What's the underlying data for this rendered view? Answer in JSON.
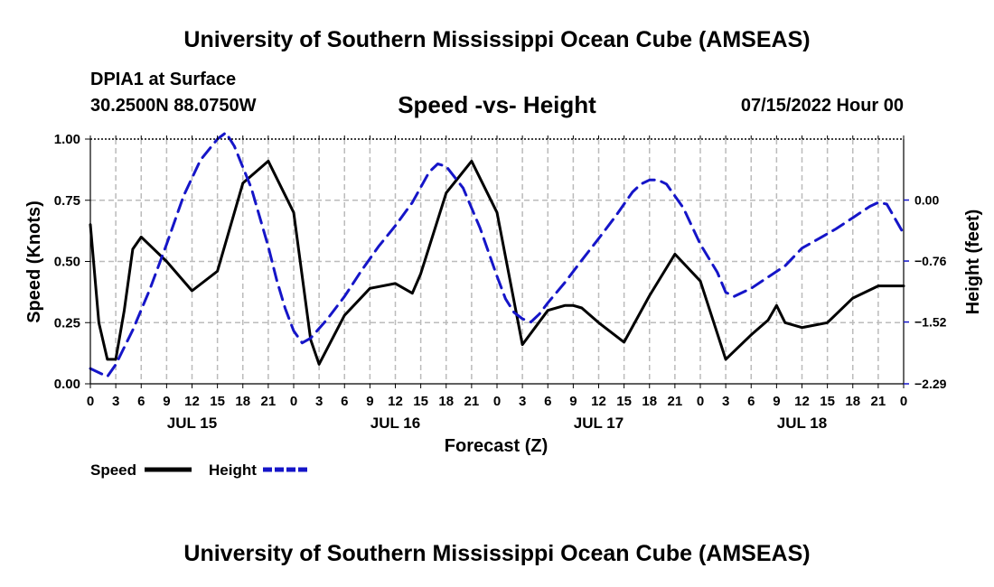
{
  "header": {
    "title": "University of Southern Mississippi Ocean Cube (AMSEAS)",
    "station": "DPIA1 at Surface",
    "coords": "30.2500N  88.0750W",
    "chart_title": "Speed -vs- Height",
    "datetime": "07/15/2022 Hour 00"
  },
  "footer": {
    "title": "University of Southern Mississippi Ocean Cube (AMSEAS)"
  },
  "colors": {
    "speed": "#000000",
    "height": "#1515c8",
    "grid": "#bbbbbb"
  },
  "chart_data": {
    "type": "line",
    "xlabel": "Forecast (Z)",
    "ylabel": "Speed (Knots)",
    "y2label": "Height (feet)",
    "xlim": [
      0,
      96
    ],
    "ylim": [
      0,
      1
    ],
    "y2lim": [
      -2.29,
      0.76
    ],
    "x_ticks": [
      0,
      3,
      6,
      9,
      12,
      15,
      18,
      21,
      24,
      27,
      30,
      33,
      36,
      39,
      42,
      45,
      48,
      51,
      54,
      57,
      60,
      63,
      66,
      69,
      72,
      75,
      78,
      81,
      84,
      87,
      90,
      93,
      96
    ],
    "x_tick_labels": [
      "0",
      "3",
      "6",
      "9",
      "12",
      "15",
      "18",
      "21",
      "0",
      "3",
      "6",
      "9",
      "12",
      "15",
      "18",
      "21",
      "0",
      "3",
      "6",
      "9",
      "12",
      "15",
      "18",
      "21",
      "0",
      "3",
      "6",
      "9",
      "12",
      "15",
      "18",
      "21",
      "0"
    ],
    "y_ticks": [
      0,
      0.25,
      0.5,
      0.75,
      1
    ],
    "y_tick_labels": [
      "0.00",
      "0.25",
      "0.50",
      "0.75",
      "1.00"
    ],
    "y2_ticks": [
      -2.29,
      -1.52,
      -0.76,
      0
    ],
    "y2_tick_labels": [
      "−2.29",
      "−1.52",
      "−0.76",
      "0.00"
    ],
    "day_labels": [
      {
        "x": 12,
        "label": "JUL 15"
      },
      {
        "x": 36,
        "label": "JUL 16"
      },
      {
        "x": 60,
        "label": "JUL 17"
      },
      {
        "x": 84,
        "label": "JUL 18"
      }
    ],
    "legend": [
      "Speed",
      "Height"
    ],
    "series": [
      {
        "name": "Speed",
        "axis": "left",
        "style": "solid",
        "x": [
          0,
          1,
          2,
          3,
          4,
          5,
          6,
          9,
          12,
          15,
          18,
          21,
          24,
          26,
          27,
          30,
          33,
          36,
          38,
          39,
          42,
          45,
          48,
          51,
          54,
          56,
          57,
          58,
          60,
          63,
          66,
          69,
          72,
          75,
          78,
          80,
          81,
          82,
          84,
          87,
          90,
          93,
          96
        ],
        "values": [
          0.65,
          0.25,
          0.1,
          0.1,
          0.3,
          0.55,
          0.6,
          0.5,
          0.38,
          0.46,
          0.82,
          0.91,
          0.7,
          0.18,
          0.08,
          0.28,
          0.39,
          0.41,
          0.37,
          0.45,
          0.78,
          0.91,
          0.7,
          0.16,
          0.3,
          0.32,
          0.32,
          0.31,
          0.25,
          0.17,
          0.36,
          0.53,
          0.42,
          0.1,
          0.2,
          0.26,
          0.32,
          0.25,
          0.23,
          0.25,
          0.35,
          0.4,
          0.4
        ]
      },
      {
        "name": "Height",
        "axis": "right",
        "style": "dashed",
        "x": [
          0,
          2,
          3,
          5,
          7,
          9,
          11,
          13,
          15,
          16,
          17,
          19,
          21,
          22,
          23,
          24,
          25,
          26,
          28,
          30,
          32,
          34,
          36,
          38,
          40,
          41,
          42,
          44,
          46,
          48,
          49,
          50,
          51,
          52,
          53,
          54,
          56,
          58,
          60,
          62,
          64,
          65,
          66,
          67,
          68,
          70,
          72,
          74,
          75,
          76,
          78,
          80,
          82,
          84,
          86,
          88,
          90,
          92,
          93,
          94,
          96
        ],
        "values": [
          -2.1,
          -2.2,
          -2.05,
          -1.62,
          -1.12,
          -0.55,
          0.05,
          0.5,
          0.76,
          0.84,
          0.67,
          0.15,
          -0.58,
          -1.0,
          -1.35,
          -1.63,
          -1.78,
          -1.72,
          -1.48,
          -1.2,
          -0.88,
          -0.58,
          -0.32,
          -0.03,
          0.35,
          0.45,
          0.42,
          0.15,
          -0.35,
          -0.95,
          -1.23,
          -1.4,
          -1.48,
          -1.52,
          -1.42,
          -1.28,
          -1.03,
          -0.75,
          -0.48,
          -0.2,
          0.1,
          0.2,
          0.25,
          0.25,
          0.2,
          -0.1,
          -0.55,
          -0.9,
          -1.15,
          -1.2,
          -1.1,
          -0.96,
          -0.82,
          -0.6,
          -0.48,
          -0.36,
          -0.22,
          -0.08,
          -0.03,
          -0.05,
          -0.42
        ]
      }
    ]
  }
}
